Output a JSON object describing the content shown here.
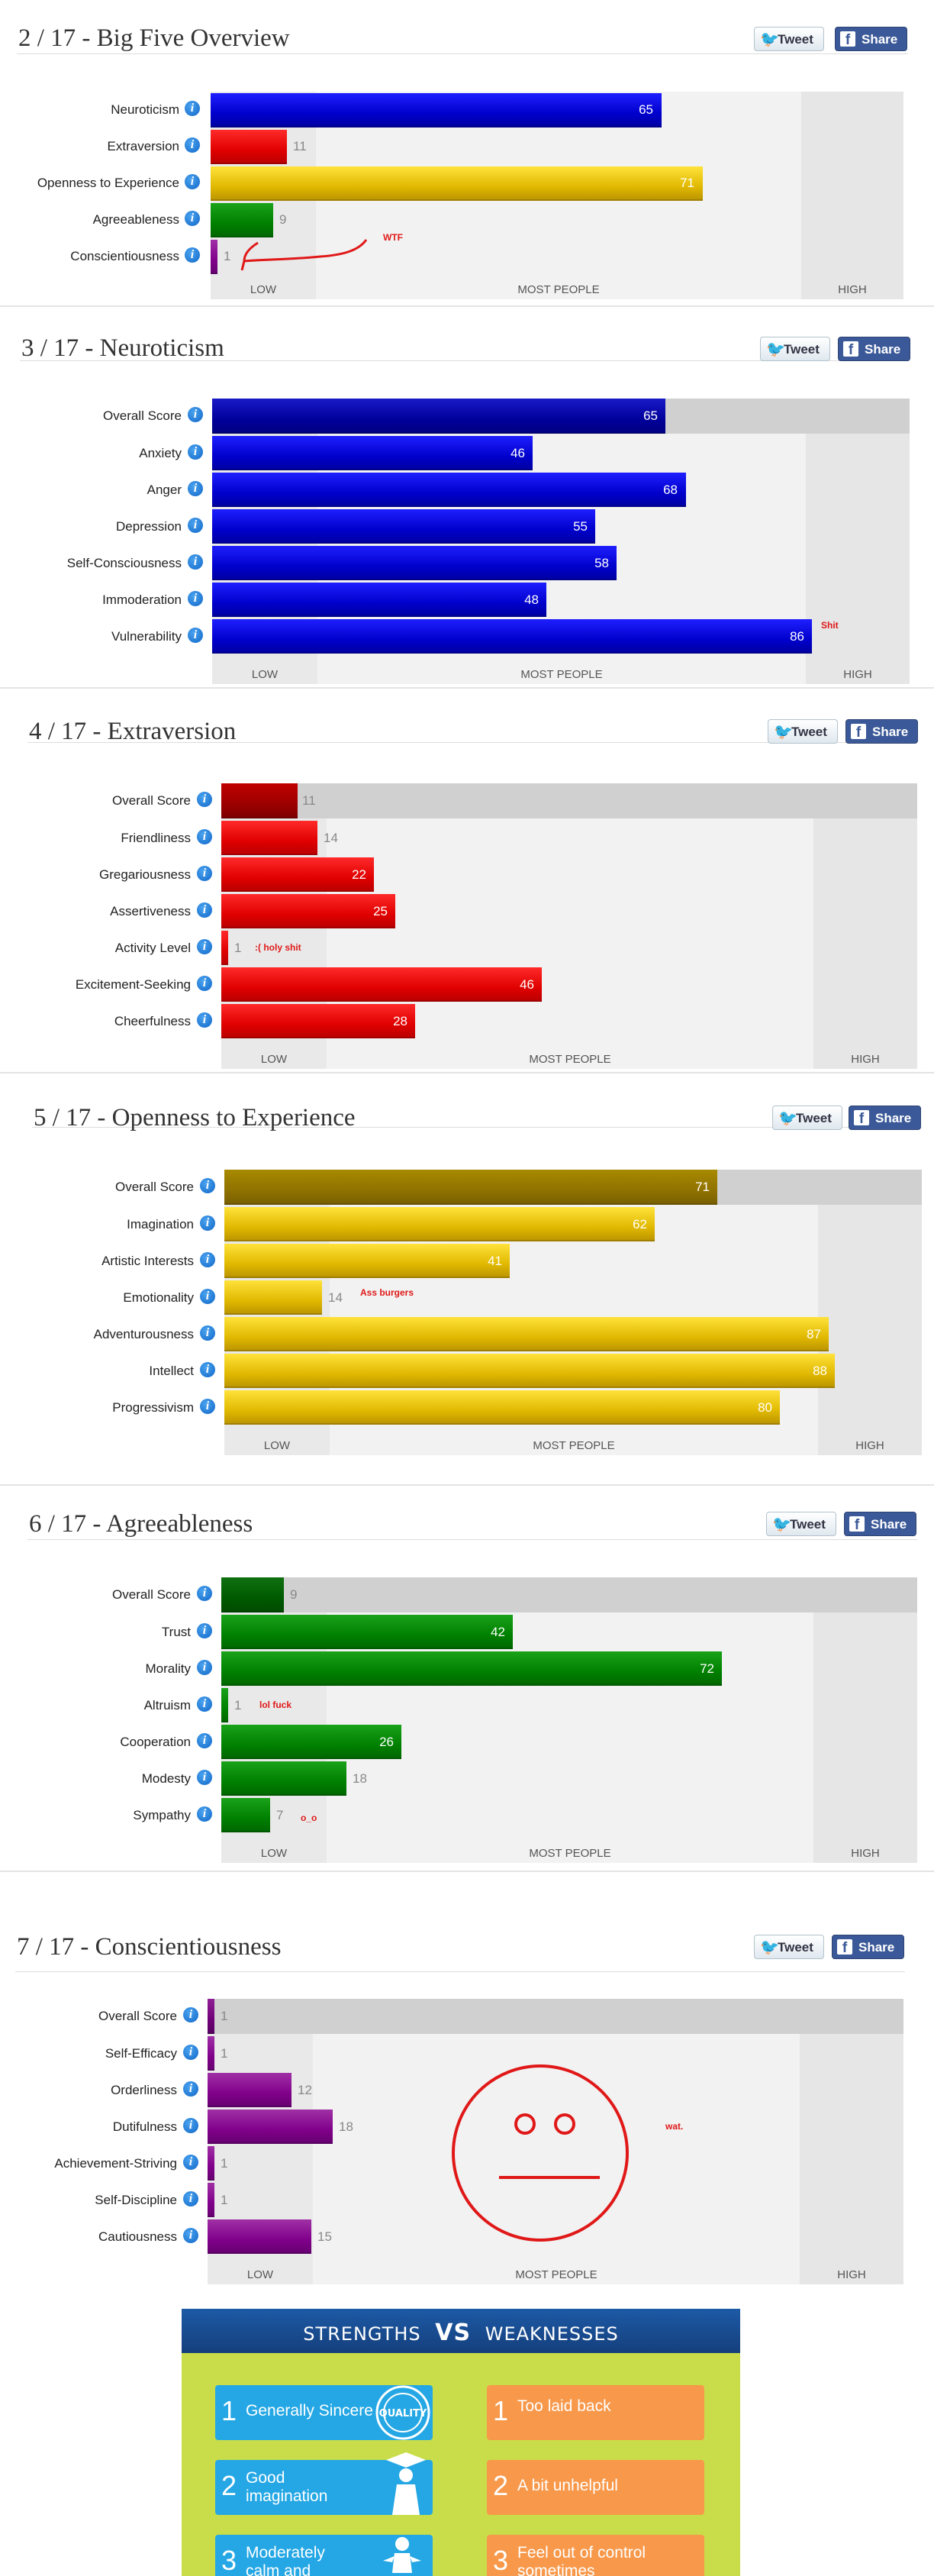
{
  "share": {
    "tweet": "Tweet",
    "share": "Share",
    "twitter_icon": "twitter-bird-icon",
    "facebook_icon": "facebook-f-icon"
  },
  "axis": {
    "low": "LOW",
    "mid": "MOST PEOPLE",
    "high": "HIGH"
  },
  "sections": [
    {
      "title": "2 / 17 - Big Five Overview",
      "color": "blue",
      "rows": [
        {
          "label": "Neuroticism",
          "value": 65
        },
        {
          "label": "Extraversion",
          "value": 11
        },
        {
          "label": "Openness to Experience",
          "value": 71
        },
        {
          "label": "Agreeableness",
          "value": 9
        },
        {
          "label": "Conscientiousness",
          "value": 1
        }
      ],
      "annotation": "WTF"
    },
    {
      "title": "3 / 17 - Neuroticism",
      "rows": [
        {
          "label": "Overall Score",
          "value": 65
        },
        {
          "label": "Anxiety",
          "value": 46
        },
        {
          "label": "Anger",
          "value": 68
        },
        {
          "label": "Depression",
          "value": 55
        },
        {
          "label": "Self-Consciousness",
          "value": 58
        },
        {
          "label": "Immoderation",
          "value": 48
        },
        {
          "label": "Vulnerability",
          "value": 86
        }
      ],
      "annotation": "Shit"
    },
    {
      "title": "4 / 17 - Extraversion",
      "rows": [
        {
          "label": "Overall Score",
          "value": 11
        },
        {
          "label": "Friendliness",
          "value": 14
        },
        {
          "label": "Gregariousness",
          "value": 22
        },
        {
          "label": "Assertiveness",
          "value": 25
        },
        {
          "label": "Activity Level",
          "value": 1
        },
        {
          "label": "Excitement-Seeking",
          "value": 46
        },
        {
          "label": "Cheerfulness",
          "value": 28
        }
      ],
      "annotation": ":( holy shit"
    },
    {
      "title": "5 / 17 - Openness to Experience",
      "rows": [
        {
          "label": "Overall Score",
          "value": 71
        },
        {
          "label": "Imagination",
          "value": 62
        },
        {
          "label": "Artistic Interests",
          "value": 41
        },
        {
          "label": "Emotionality",
          "value": 14
        },
        {
          "label": "Adventurousness",
          "value": 87
        },
        {
          "label": "Intellect",
          "value": 88
        },
        {
          "label": "Progressivism",
          "value": 80
        }
      ],
      "annotation": "Ass burgers"
    },
    {
      "title": "6 / 17 - Agreeableness",
      "rows": [
        {
          "label": "Overall Score",
          "value": 9
        },
        {
          "label": "Trust",
          "value": 42
        },
        {
          "label": "Morality",
          "value": 72
        },
        {
          "label": "Altruism",
          "value": 1
        },
        {
          "label": "Cooperation",
          "value": 26
        },
        {
          "label": "Modesty",
          "value": 18
        },
        {
          "label": "Sympathy",
          "value": 7
        }
      ],
      "annotation": "lol fuck",
      "annotation2": "o_o"
    },
    {
      "title": "7 / 17 - Conscientiousness",
      "rows": [
        {
          "label": "Overall Score",
          "value": 1
        },
        {
          "label": "Self-Efficacy",
          "value": 1
        },
        {
          "label": "Orderliness",
          "value": 12
        },
        {
          "label": "Dutifulness",
          "value": 18
        },
        {
          "label": "Achievement-Striving",
          "value": 1
        },
        {
          "label": "Self-Discipline",
          "value": 1
        },
        {
          "label": "Cautiousness",
          "value": 15
        }
      ],
      "annotation": "wat."
    }
  ],
  "sw": {
    "title_left": "STRENGTHS",
    "title_vs": "VS",
    "title_right": "WEAKNESSES",
    "strengths": [
      {
        "num": "1",
        "text": "Generally Sincere",
        "icon": "quality-badge-icon"
      },
      {
        "num": "2",
        "text": "Good imagination",
        "icon": "graduate-icon"
      },
      {
        "num": "3",
        "text": "Moderately calm and balanced",
        "icon": "meditation-icon"
      }
    ],
    "weaknesses": [
      {
        "num": "1",
        "text": "Too laid back"
      },
      {
        "num": "2",
        "text": "A bit unhelpful"
      },
      {
        "num": "3",
        "text": "Feel out of control sometimes"
      }
    ]
  }
}
